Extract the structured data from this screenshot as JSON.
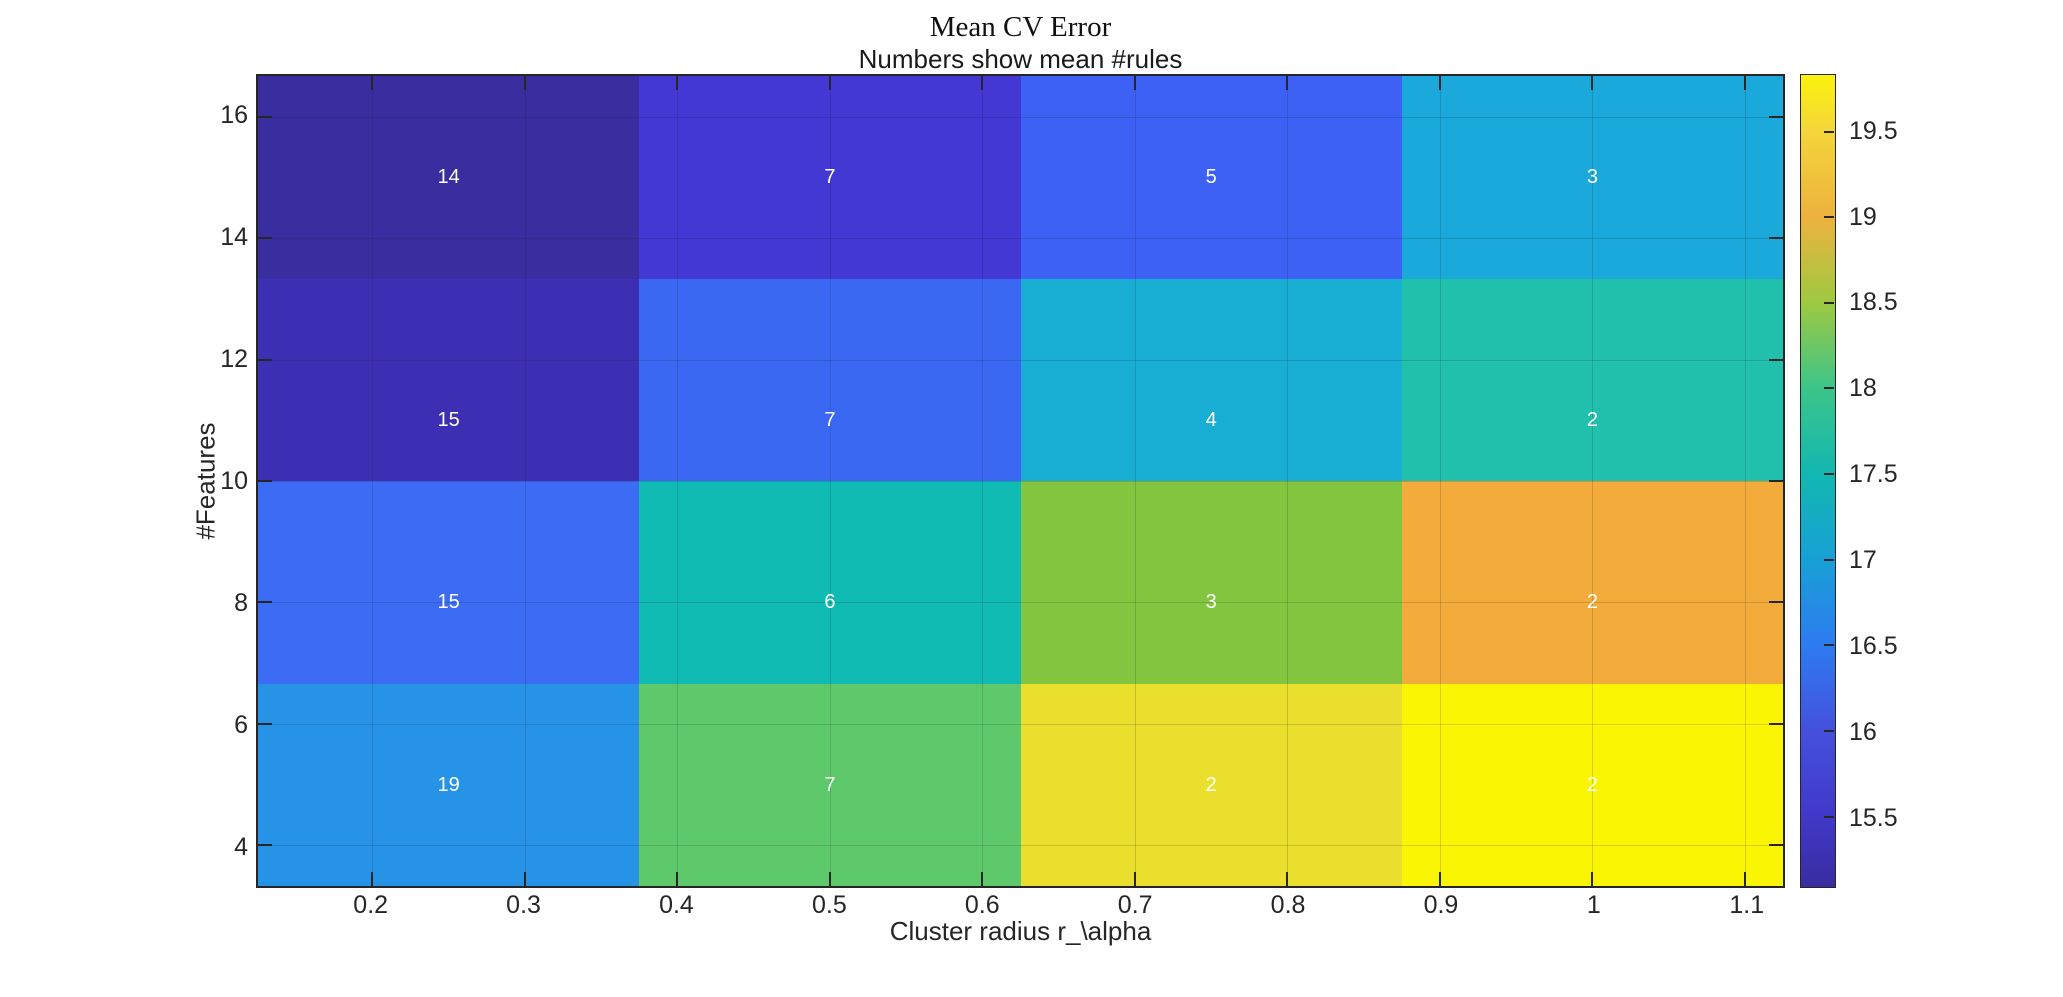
{
  "figure": {
    "background": "#ffffff",
    "axis_color": "#262626"
  },
  "chart_data": {
    "type": "heatmap",
    "title": "Mean CV Error",
    "subtitle": "Numbers show mean #rules",
    "xlabel": "Cluster radius r_\\alpha",
    "ylabel": "#Features",
    "xlim": [
      0.125,
      1.125
    ],
    "ylim": [
      3.3333,
      16.6667
    ],
    "grid": true,
    "x_tick_values": [
      0.2,
      0.3,
      0.4,
      0.5,
      0.6,
      0.7,
      0.8,
      0.9,
      1,
      1.1
    ],
    "x_tick_labels": [
      "0.2",
      "0.3",
      "0.4",
      "0.5",
      "0.6",
      "0.7",
      "0.8",
      "0.9",
      "1",
      "1.1"
    ],
    "y_tick_values": [
      4,
      6,
      8,
      10,
      12,
      14,
      16
    ],
    "y_tick_labels": [
      "4",
      "6",
      "8",
      "10",
      "12",
      "14",
      "16"
    ],
    "column_x_centers": [
      0.25,
      0.5,
      0.75,
      1.0
    ],
    "row_label_y_positions": [
      15,
      11,
      8,
      5
    ],
    "mean_rules_matrix": [
      [
        14,
        7,
        5,
        3
      ],
      [
        15,
        7,
        4,
        2
      ],
      [
        15,
        6,
        3,
        2
      ],
      [
        19,
        7,
        2,
        2
      ]
    ],
    "cell_colors": [
      [
        "#392D9F",
        "#4338D3",
        "#3E61F5",
        "#1AA9DA"
      ],
      [
        "#3D2FB3",
        "#3A68F3",
        "#18AED4",
        "#21C0AC"
      ],
      [
        "#3C6BF4",
        "#10BBB4",
        "#84C53F",
        "#F3AC3B"
      ],
      [
        "#2793E7",
        "#5DC96A",
        "#EBDF2D",
        "#FAF502"
      ]
    ],
    "colorbar": {
      "clim": [
        15.09,
        19.83
      ],
      "tick_values": [
        15.5,
        16,
        16.5,
        17,
        17.5,
        18,
        18.5,
        19,
        19.5
      ],
      "tick_labels": [
        "15.5",
        "16",
        "16.5",
        "17",
        "17.5",
        "18",
        "18.5",
        "19",
        "19.5"
      ],
      "gradient_stops": [
        {
          "v": 15.09,
          "color": "#392D9F"
        },
        {
          "v": 15.5,
          "color": "#4138C8"
        },
        {
          "v": 16.0,
          "color": "#4450DC"
        },
        {
          "v": 16.5,
          "color": "#2E7BF0"
        },
        {
          "v": 17.0,
          "color": "#18A0D6"
        },
        {
          "v": 17.5,
          "color": "#12B7B1"
        },
        {
          "v": 18.0,
          "color": "#3CC48A"
        },
        {
          "v": 18.5,
          "color": "#9EC941"
        },
        {
          "v": 19.0,
          "color": "#EDB23E"
        },
        {
          "v": 19.5,
          "color": "#F4D53A"
        },
        {
          "v": 19.83,
          "color": "#FAF30D"
        }
      ]
    }
  }
}
